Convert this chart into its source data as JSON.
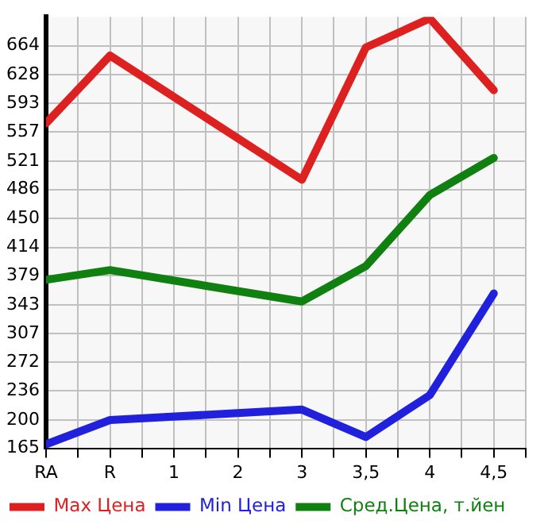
{
  "chart_data": {
    "type": "line",
    "categories": [
      "RA",
      "R",
      "1",
      "2",
      "3",
      "3,5",
      "4",
      "4,5"
    ],
    "series": [
      {
        "name": "Max Цена",
        "color": "#dd2020",
        "values": [
          568,
          652,
          null,
          null,
          498,
          662,
          698,
          609
        ]
      },
      {
        "name": "Min Цена",
        "color": "#2020dd",
        "values": [
          170,
          200,
          null,
          null,
          213,
          179,
          231,
          357
        ]
      },
      {
        "name": "Сред.Цена, т.йен",
        "color": "#108010",
        "values": [
          374,
          386,
          null,
          null,
          347,
          391,
          479,
          525
        ]
      }
    ],
    "ylim": [
      165,
      700
    ],
    "yticks": [
      165,
      200,
      236,
      272,
      307,
      343,
      379,
      414,
      450,
      486,
      521,
      557,
      593,
      628,
      664
    ],
    "grid": true,
    "legend": "bottom",
    "marker": "none",
    "line_style": "solid"
  }
}
